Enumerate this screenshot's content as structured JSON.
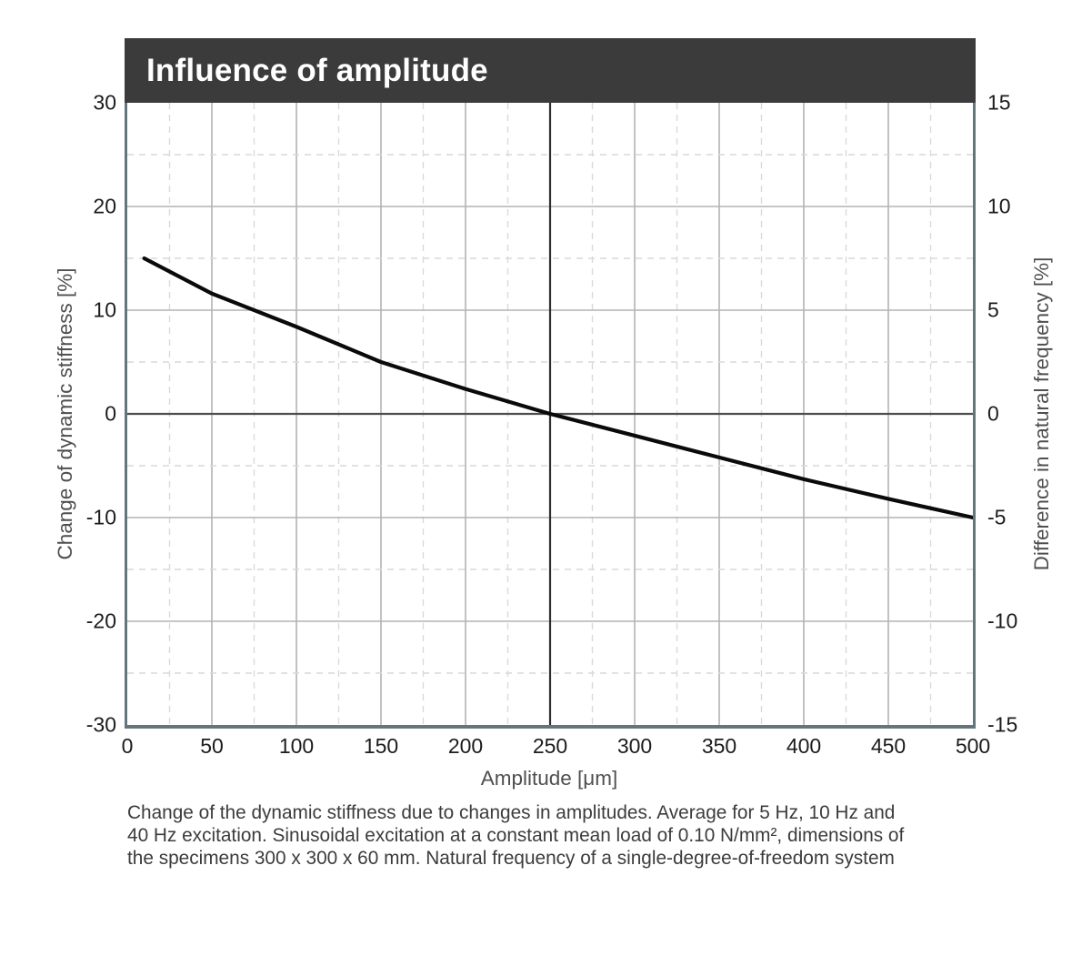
{
  "header": {
    "title": "Influence of amplitude"
  },
  "axes": {
    "left": {
      "title": "Change of dynamic stiffness [%]",
      "ticks": [
        "30",
        "20",
        "10",
        "0",
        "-10",
        "-20",
        "-30"
      ]
    },
    "right": {
      "title": "Difference in natural frequency [%]",
      "ticks": [
        "15",
        "10",
        "5",
        "0",
        "-5",
        "-10",
        "-15"
      ]
    },
    "x": {
      "title": "Amplitude [μm]",
      "ticks": [
        "0",
        "50",
        "100",
        "150",
        "200",
        "250",
        "300",
        "350",
        "400",
        "450",
        "500"
      ]
    }
  },
  "chart_data": {
    "type": "line",
    "title": "Influence of amplitude",
    "xlabel": "Amplitude [μm]",
    "ylabel_left": "Change of dynamic stiffness [%]",
    "ylabel_right": "Difference in natural frequency [%]",
    "xlim": [
      0,
      500
    ],
    "ylim_left": [
      -30,
      30
    ],
    "ylim_right": [
      -15,
      15
    ],
    "x_major_step": 50,
    "x_minor_step": 25,
    "y_major_step_left": 10,
    "y_minor_step_left": 5,
    "grid": "major solid, minor dashed",
    "legend_position": "none",
    "reference_lines": {
      "horizontal_at_y_left": 0,
      "vertical_at_x": 250
    },
    "series": [
      {
        "name": "Change of dynamic stiffness, average for 5 Hz, 10 Hz and 40 Hz excitation",
        "x": [
          10,
          50,
          100,
          150,
          200,
          250,
          300,
          350,
          400,
          450,
          500
        ],
        "y_left_percent": [
          15,
          11.6,
          8.4,
          5.0,
          2.4,
          0,
          -2.1,
          -4.2,
          -6.3,
          -8.2,
          -10
        ],
        "y_right_percent": [
          7.5,
          5.8,
          4.2,
          2.5,
          1.2,
          0,
          -1.05,
          -2.1,
          -3.15,
          -4.1,
          -5
        ]
      }
    ]
  },
  "caption": {
    "line1": "Change of the dynamic stiffness due to changes in amplitudes. Average for 5 Hz, 10 Hz and",
    "line2": "40 Hz excitation. Sinusoidal excitation at a constant mean load of 0.10 N/mm², dimensions of",
    "line3": "the specimens 300 x 300 x 60 mm. Natural frequency of a single-degree-of-freedom system"
  },
  "colors": {
    "header_bg": "#3b3b3b",
    "header_text": "#ffffff",
    "frame": "#64767c",
    "grid_major": "#b3b3b3",
    "grid_minor": "#d9d9d9",
    "zero_line": "#4d4d4d",
    "marker_line": "#2f2f2f",
    "curve": "#0a0a0a",
    "tick_text": "#1c1c1c",
    "axis_title_text": "#4f4f4f",
    "caption_text": "#3c3c3c"
  }
}
